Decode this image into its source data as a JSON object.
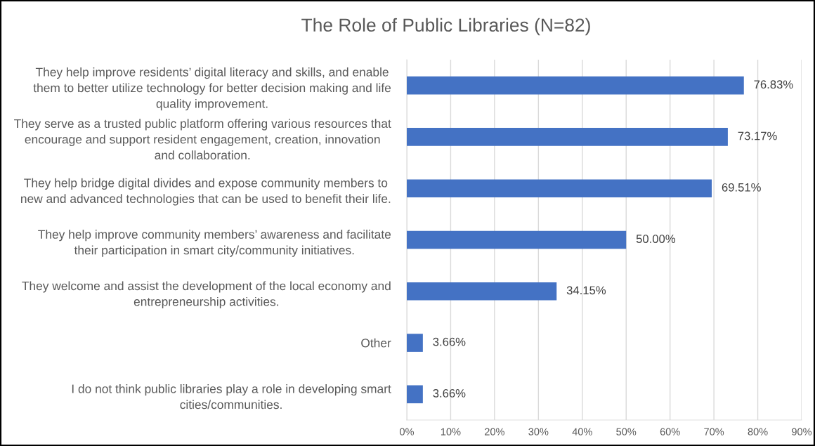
{
  "chart_data": {
    "type": "bar",
    "orientation": "horizontal",
    "title": "The Role of Public Libraries (N=82)",
    "categories": [
      "They help improve residents’ digital literacy and skills, and enable\nthem to better utilize technology for better decision making and life\nquality improvement.",
      "They serve as a trusted public platform offering various resources that\nencourage and support resident engagement, creation, innovation\nand collaboration.",
      "They help bridge digital divides and expose community members to\nnew and advanced technologies that can be used to benefit their life.",
      "They help improve community members’ awareness and facilitate\ntheir participation in smart city/community initiatives.",
      "They welcome and assist the development of the local economy and\nentrepreneurship activities.",
      "Other",
      "I do not think public libraries play a role in developing smart\ncities/communities."
    ],
    "values": [
      76.83,
      73.17,
      69.51,
      50.0,
      34.15,
      3.66,
      3.66
    ],
    "value_labels": [
      "76.83%",
      "73.17%",
      "69.51%",
      "50.00%",
      "34.15%",
      "3.66%",
      "3.66%"
    ],
    "color": "#4472c4",
    "xlim": [
      0,
      90
    ],
    "xticks": [
      {
        "value": 0,
        "label": "0%"
      },
      {
        "value": 10,
        "label": "10%"
      },
      {
        "value": 20,
        "label": "20%"
      },
      {
        "value": 30,
        "label": "30%"
      },
      {
        "value": 40,
        "label": "40%"
      },
      {
        "value": 50,
        "label": "50%"
      },
      {
        "value": 60,
        "label": "60%"
      },
      {
        "value": 70,
        "label": "70%"
      },
      {
        "value": 80,
        "label": "80%"
      },
      {
        "value": 90,
        "label": "90%"
      }
    ],
    "grid": "x"
  }
}
